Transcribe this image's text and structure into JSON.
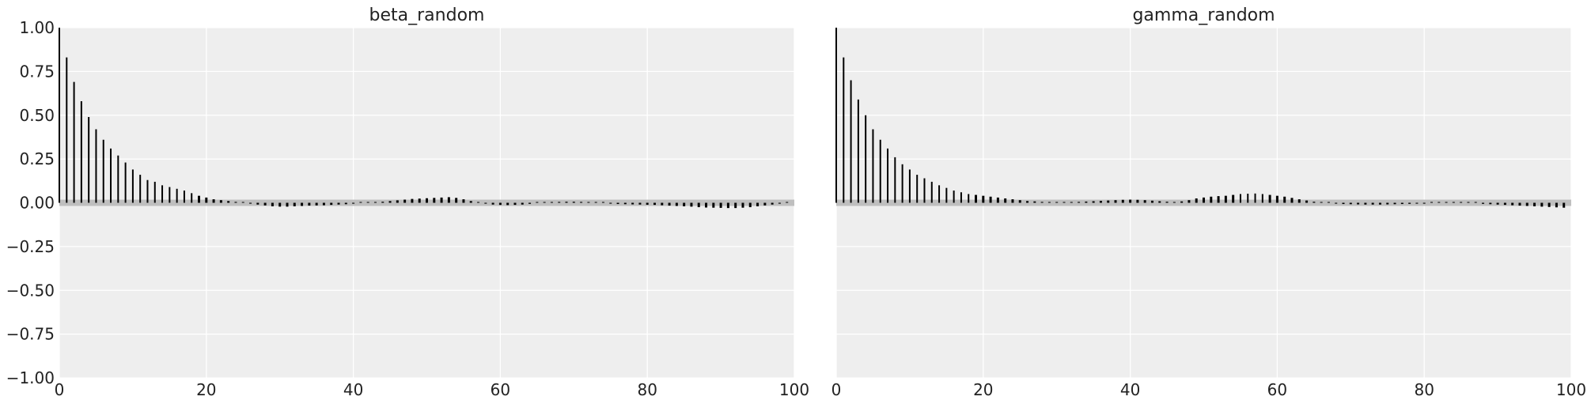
{
  "chart_data": [
    {
      "type": "bar",
      "title": "beta_random",
      "xlim": [
        0,
        100
      ],
      "ylim": [
        -1.0,
        1.0
      ],
      "xticks": [
        0,
        20,
        40,
        60,
        80,
        100
      ],
      "xtick_labels": [
        "0",
        "20",
        "40",
        "60",
        "80",
        "100"
      ],
      "yticks": [
        1.0,
        0.75,
        0.5,
        0.25,
        0.0,
        -0.25,
        -0.5,
        -0.75,
        -1.0
      ],
      "ytick_labels": [
        "1.00",
        "0.75",
        "0.50",
        "0.25",
        "0.00",
        "−0.25",
        "−0.50",
        "−0.75",
        "−1.00"
      ],
      "grid": true,
      "confidence_band": [
        -0.018,
        0.018
      ],
      "x": [
        0,
        1,
        2,
        3,
        4,
        5,
        6,
        7,
        8,
        9,
        10,
        11,
        12,
        13,
        14,
        15,
        16,
        17,
        18,
        19,
        20,
        21,
        22,
        23,
        24,
        25,
        26,
        27,
        28,
        29,
        30,
        31,
        32,
        33,
        34,
        35,
        36,
        37,
        38,
        39,
        40,
        41,
        42,
        43,
        44,
        45,
        46,
        47,
        48,
        49,
        50,
        51,
        52,
        53,
        54,
        55,
        56,
        57,
        58,
        59,
        60,
        61,
        62,
        63,
        64,
        65,
        66,
        67,
        68,
        69,
        70,
        71,
        72,
        73,
        74,
        75,
        76,
        77,
        78,
        79,
        80,
        81,
        82,
        83,
        84,
        85,
        86,
        87,
        88,
        89,
        90,
        91,
        92,
        93,
        94,
        95,
        96,
        97,
        98,
        99
      ],
      "values": [
        1.0,
        0.83,
        0.69,
        0.58,
        0.49,
        0.42,
        0.36,
        0.31,
        0.27,
        0.23,
        0.19,
        0.16,
        0.13,
        0.12,
        0.1,
        0.09,
        0.08,
        0.07,
        0.055,
        0.04,
        0.03,
        0.02,
        0.015,
        0.01,
        0.005,
        0.0,
        -0.005,
        -0.01,
        -0.015,
        -0.02,
        -0.022,
        -0.022,
        -0.02,
        -0.018,
        -0.016,
        -0.015,
        -0.014,
        -0.012,
        -0.01,
        -0.008,
        -0.005,
        -0.002,
        0.0,
        0.003,
        0.006,
        0.01,
        0.014,
        0.018,
        0.022,
        0.024,
        0.026,
        0.028,
        0.03,
        0.032,
        0.028,
        0.02,
        0.01,
        0.0,
        -0.005,
        -0.01,
        -0.012,
        -0.013,
        -0.012,
        -0.01,
        -0.006,
        -0.003,
        0.0,
        0.003,
        0.005,
        0.006,
        0.006,
        0.005,
        0.003,
        0.0,
        -0.003,
        -0.005,
        -0.007,
        -0.008,
        -0.009,
        -0.01,
        -0.011,
        -0.012,
        -0.014,
        -0.016,
        -0.018,
        -0.02,
        -0.022,
        -0.025,
        -0.027,
        -0.028,
        -0.029,
        -0.03,
        -0.03,
        -0.028,
        -0.025,
        -0.02,
        -0.015,
        -0.01,
        -0.005,
        0.0
      ]
    },
    {
      "type": "bar",
      "title": "gamma_random",
      "xlim": [
        0,
        100
      ],
      "ylim": [
        -1.0,
        1.0
      ],
      "xticks": [
        0,
        20,
        40,
        60,
        80,
        100
      ],
      "xtick_labels": [
        "0",
        "20",
        "40",
        "60",
        "80",
        "100"
      ],
      "grid": true,
      "confidence_band": [
        -0.018,
        0.018
      ],
      "x": [
        0,
        1,
        2,
        3,
        4,
        5,
        6,
        7,
        8,
        9,
        10,
        11,
        12,
        13,
        14,
        15,
        16,
        17,
        18,
        19,
        20,
        21,
        22,
        23,
        24,
        25,
        26,
        27,
        28,
        29,
        30,
        31,
        32,
        33,
        34,
        35,
        36,
        37,
        38,
        39,
        40,
        41,
        42,
        43,
        44,
        45,
        46,
        47,
        48,
        49,
        50,
        51,
        52,
        53,
        54,
        55,
        56,
        57,
        58,
        59,
        60,
        61,
        62,
        63,
        64,
        65,
        66,
        67,
        68,
        69,
        70,
        71,
        72,
        73,
        74,
        75,
        76,
        77,
        78,
        79,
        80,
        81,
        82,
        83,
        84,
        85,
        86,
        87,
        88,
        89,
        90,
        91,
        92,
        93,
        94,
        95,
        96,
        97,
        98,
        99
      ],
      "values": [
        1.0,
        0.83,
        0.7,
        0.59,
        0.5,
        0.42,
        0.36,
        0.31,
        0.26,
        0.22,
        0.19,
        0.16,
        0.14,
        0.12,
        0.1,
        0.085,
        0.07,
        0.06,
        0.05,
        0.045,
        0.04,
        0.035,
        0.03,
        0.025,
        0.02,
        0.015,
        0.01,
        0.008,
        0.005,
        0.003,
        0.002,
        0.002,
        0.003,
        0.005,
        0.007,
        0.009,
        0.011,
        0.013,
        0.015,
        0.017,
        0.018,
        0.017,
        0.015,
        0.012,
        0.009,
        0.006,
        0.004,
        0.008,
        0.015,
        0.025,
        0.03,
        0.035,
        0.038,
        0.04,
        0.045,
        0.05,
        0.052,
        0.053,
        0.05,
        0.045,
        0.04,
        0.035,
        0.028,
        0.02,
        0.013,
        0.006,
        0.0,
        -0.003,
        -0.005,
        -0.007,
        -0.008,
        -0.009,
        -0.01,
        -0.01,
        -0.01,
        -0.009,
        -0.008,
        -0.007,
        -0.006,
        -0.005,
        -0.005,
        -0.004,
        -0.003,
        -0.002,
        -0.001,
        0.0,
        -0.002,
        -0.004,
        -0.006,
        -0.008,
        -0.01,
        -0.012,
        -0.014,
        -0.016,
        -0.018,
        -0.02,
        -0.022,
        -0.024,
        -0.026,
        -0.028
      ]
    }
  ]
}
